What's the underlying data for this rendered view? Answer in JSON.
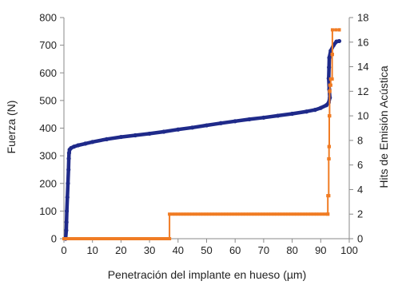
{
  "chart_data": {
    "type": "scatter",
    "title": "",
    "xlabel": "Penetración del implante en hueso (µm)",
    "ylabel_left": "Fuerza (N)",
    "ylabel_right": "Hits de Emisión Acústica",
    "xlim": [
      0,
      100
    ],
    "ylim_left": [
      0,
      800
    ],
    "ylim_right": [
      0,
      18
    ],
    "x_ticks": [
      "0",
      "10",
      "20",
      "30",
      "40",
      "50",
      "60",
      "70",
      "80",
      "90",
      "100"
    ],
    "y_left_ticks": [
      "0",
      "100",
      "200",
      "300",
      "400",
      "500",
      "600",
      "700",
      "800"
    ],
    "y_right_ticks": [
      "0",
      "2",
      "4",
      "6",
      "8",
      "10",
      "12",
      "14",
      "16",
      "18"
    ],
    "grid": false,
    "legend": "none",
    "series": [
      {
        "axis": "left",
        "color": "#1f2a8a",
        "marker": "circle",
        "points": [
          [
            0.6,
            0
          ],
          [
            0.8,
            30
          ],
          [
            0.9,
            60
          ],
          [
            1.0,
            100
          ],
          [
            1.2,
            150
          ],
          [
            1.4,
            200
          ],
          [
            1.6,
            250
          ],
          [
            1.7,
            290
          ],
          [
            1.8,
            310
          ],
          [
            2.0,
            322
          ],
          [
            2.5,
            328
          ],
          [
            3.5,
            333
          ],
          [
            5,
            338
          ],
          [
            7.5,
            344
          ],
          [
            10,
            350
          ],
          [
            15,
            360
          ],
          [
            20,
            368
          ],
          [
            25,
            374
          ],
          [
            30,
            380
          ],
          [
            35,
            387
          ],
          [
            40,
            395
          ],
          [
            45,
            402
          ],
          [
            50,
            410
          ],
          [
            55,
            418
          ],
          [
            60,
            425
          ],
          [
            65,
            432
          ],
          [
            70,
            438
          ],
          [
            75,
            445
          ],
          [
            80,
            452
          ],
          [
            85,
            460
          ],
          [
            88,
            466
          ],
          [
            90,
            473
          ],
          [
            92,
            483
          ],
          [
            92.8,
            492
          ],
          [
            93.2,
            510
          ],
          [
            93.0,
            540
          ],
          [
            92.8,
            580
          ],
          [
            92.9,
            620
          ],
          [
            93.0,
            655
          ],
          [
            93.5,
            680
          ],
          [
            94.5,
            700
          ],
          [
            95.5,
            713
          ],
          [
            96.5,
            715
          ]
        ]
      },
      {
        "axis": "right",
        "color": "#f07c24",
        "marker": "square",
        "points": [
          [
            0,
            0
          ],
          [
            37,
            0
          ],
          [
            37,
            2
          ],
          [
            92.5,
            2
          ],
          [
            92.5,
            3.5
          ],
          [
            92.8,
            3.5
          ],
          [
            92.8,
            6.5
          ],
          [
            92.9,
            6.5
          ],
          [
            92.9,
            7.5
          ],
          [
            93,
            7.5
          ],
          [
            93,
            10
          ],
          [
            93.1,
            10
          ],
          [
            93.1,
            12
          ],
          [
            93.2,
            12
          ],
          [
            93.2,
            12.5
          ],
          [
            93.5,
            12.5
          ],
          [
            93.5,
            13
          ],
          [
            94,
            13
          ],
          [
            94,
            15
          ],
          [
            94.1,
            15
          ],
          [
            94.1,
            17
          ],
          [
            96.5,
            17
          ]
        ]
      }
    ]
  }
}
